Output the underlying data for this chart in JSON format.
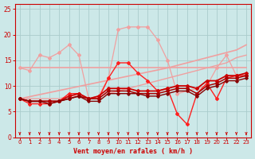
{
  "bg_color": "#cce8e8",
  "grid_color": "#aacccc",
  "xlabel": "Vent moyen/en rafales ( km/h )",
  "xlabel_color": "#cc0000",
  "tick_color": "#cc0000",
  "xlim": [
    -0.5,
    23.5
  ],
  "ylim": [
    0,
    26
  ],
  "yticks": [
    0,
    5,
    10,
    15,
    20,
    25
  ],
  "xticks": [
    0,
    1,
    2,
    3,
    4,
    5,
    6,
    7,
    8,
    9,
    10,
    11,
    12,
    13,
    14,
    15,
    16,
    17,
    18,
    19,
    20,
    21,
    22,
    23
  ],
  "lines": [
    {
      "x": [
        0,
        1,
        2,
        3,
        4,
        5,
        6,
        7,
        8,
        9,
        10,
        11,
        12,
        13,
        14,
        15,
        16,
        17,
        18,
        19,
        20,
        21,
        22,
        23
      ],
      "y": [
        13.5,
        13.5,
        13.5,
        13.5,
        13.5,
        13.5,
        13.5,
        13.5,
        13.5,
        13.5,
        13.5,
        13.5,
        13.5,
        13.5,
        13.5,
        13.5,
        13.5,
        13.5,
        13.5,
        13.5,
        13.5,
        13.5,
        13.5,
        13.5
      ],
      "color": "#f0a0a0",
      "lw": 1.2,
      "marker": null
    },
    {
      "x": [
        0,
        1,
        2,
        3,
        4,
        5,
        6,
        7,
        8,
        9,
        10,
        11,
        12,
        13,
        14,
        15,
        16,
        17,
        18,
        19,
        20,
        21,
        22,
        23
      ],
      "y": [
        7.5,
        7.9,
        8.3,
        8.7,
        9.1,
        9.5,
        9.9,
        10.3,
        10.7,
        11.1,
        11.5,
        11.9,
        12.3,
        12.7,
        13.1,
        13.5,
        14.0,
        14.5,
        15.0,
        15.5,
        16.0,
        16.5,
        17.0,
        18.0
      ],
      "color": "#f0a0a0",
      "lw": 1.2,
      "marker": null
    },
    {
      "x": [
        0,
        1,
        2,
        3,
        4,
        5,
        6,
        7,
        8,
        9,
        10,
        11,
        12,
        13,
        14,
        15,
        16,
        17,
        18,
        19,
        20,
        21,
        22,
        23
      ],
      "y": [
        7.5,
        7.5,
        7.5,
        7.5,
        7.5,
        8.0,
        8.0,
        7.5,
        8.0,
        8.5,
        9.0,
        9.5,
        10.0,
        10.5,
        11.0,
        11.5,
        12.0,
        12.5,
        13.0,
        13.5,
        14.0,
        14.5,
        15.5,
        16.0
      ],
      "color": "#f0a0a0",
      "lw": 1.0,
      "marker": null
    },
    {
      "x": [
        0,
        1,
        2,
        3,
        4,
        5,
        6,
        7,
        8,
        9,
        10,
        11,
        12,
        13,
        14,
        15,
        16,
        17,
        18,
        19,
        20,
        21,
        22,
        23
      ],
      "y": [
        13.5,
        13.0,
        16.0,
        15.5,
        16.5,
        18.0,
        16.0,
        7.5,
        8.0,
        11.5,
        21.0,
        21.5,
        21.5,
        21.5,
        19.0,
        15.0,
        8.5,
        9.0,
        9.5,
        10.0,
        13.5,
        16.0,
        12.0,
        12.0
      ],
      "color": "#f0a0a0",
      "lw": 0.9,
      "marker": "D",
      "ms": 2.0
    },
    {
      "x": [
        0,
        1,
        2,
        3,
        4,
        5,
        6,
        7,
        8,
        9,
        10,
        11,
        12,
        13,
        14,
        15,
        16,
        17,
        18,
        19,
        20,
        21,
        22,
        23
      ],
      "y": [
        7.5,
        6.5,
        6.5,
        6.5,
        7.0,
        8.5,
        8.5,
        7.5,
        7.5,
        11.5,
        14.5,
        14.5,
        12.5,
        11.0,
        9.0,
        9.5,
        4.5,
        2.5,
        8.5,
        10.5,
        7.5,
        11.5,
        12.0,
        12.0
      ],
      "color": "#ff2020",
      "lw": 1.0,
      "marker": "D",
      "ms": 2.0
    },
    {
      "x": [
        0,
        1,
        2,
        3,
        4,
        5,
        6,
        7,
        8,
        9,
        10,
        11,
        12,
        13,
        14,
        15,
        16,
        17,
        18,
        19,
        20,
        21,
        22,
        23
      ],
      "y": [
        7.5,
        7.0,
        7.0,
        7.0,
        7.0,
        8.0,
        8.5,
        7.5,
        8.0,
        9.5,
        9.5,
        9.5,
        9.0,
        9.0,
        9.0,
        9.5,
        10.0,
        10.0,
        9.5,
        11.0,
        11.0,
        12.0,
        12.0,
        12.5
      ],
      "color": "#cc0000",
      "lw": 1.3,
      "marker": "D",
      "ms": 2.0
    },
    {
      "x": [
        0,
        1,
        2,
        3,
        4,
        5,
        6,
        7,
        8,
        9,
        10,
        11,
        12,
        13,
        14,
        15,
        16,
        17,
        18,
        19,
        20,
        21,
        22,
        23
      ],
      "y": [
        7.5,
        7.0,
        7.0,
        7.0,
        7.0,
        7.5,
        8.0,
        7.5,
        7.5,
        9.0,
        9.0,
        9.0,
        8.5,
        8.5,
        8.5,
        9.0,
        9.5,
        9.5,
        8.5,
        10.0,
        10.5,
        11.5,
        11.5,
        12.0
      ],
      "color": "#aa0000",
      "lw": 1.1,
      "marker": "D",
      "ms": 2.0
    },
    {
      "x": [
        0,
        1,
        2,
        3,
        4,
        5,
        6,
        7,
        8,
        9,
        10,
        11,
        12,
        13,
        14,
        15,
        16,
        17,
        18,
        19,
        20,
        21,
        22,
        23
      ],
      "y": [
        7.5,
        7.0,
        7.0,
        6.5,
        7.0,
        7.5,
        8.0,
        7.0,
        7.0,
        8.5,
        8.5,
        8.5,
        8.5,
        8.0,
        8.0,
        8.5,
        9.0,
        9.0,
        8.0,
        9.5,
        10.0,
        11.0,
        11.0,
        11.5
      ],
      "color": "#880000",
      "lw": 1.0,
      "marker": "D",
      "ms": 1.8
    }
  ],
  "arrow_color": "#cc0000"
}
